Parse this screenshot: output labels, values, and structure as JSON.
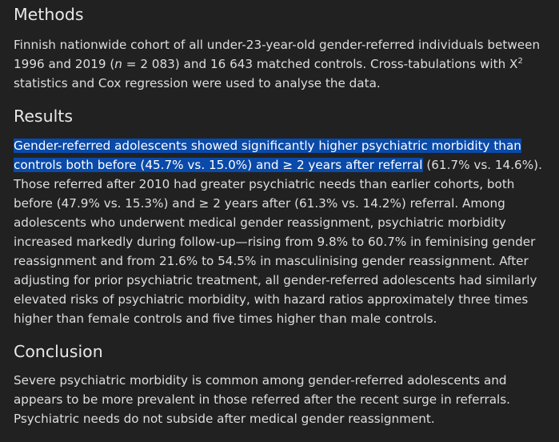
{
  "methods": {
    "title": "Methods",
    "line1": "Finnish nationwide cohort of all under-23-year-old gender-referred individuals between",
    "line2a": "1996 and 2019 (",
    "line2_n": "n",
    "line2b": " = 2 083) and 16 643 matched controls. Cross-tabulations with X",
    "line2_sup": "2",
    "line3": "statistics and Cox regression were used to analyse the data."
  },
  "results": {
    "title": "Results",
    "highlighted": "Gender-referred adolescents showed significantly higher psychiatric morbidity than controls both before (45.7% vs. 15.0%) and ≥ 2 years after referral",
    "rest": " (61.7% vs. 14.6%). Those referred after 2010 had greater psychiatric needs than earlier cohorts, both before (47.9% vs. 15.3%) and ≥ 2 years after (61.3% vs. 14.2%) referral. Among adolescents who underwent medical gender reassignment, psychiatric morbidity increased markedly during follow-up—rising from 9.8% to 60.7% in feminising gender reassignment and from 21.6% to 54.5% in masculinising gender reassignment. After adjusting for prior psychiatric treatment, all gender-referred adolescents had similarly elevated risks of psychiatric morbidity, with hazard ratios approximately three times higher than female controls and five times higher than male controls."
  },
  "conclusion": {
    "title": "Conclusion",
    "body": "Severe psychiatric morbidity is common among gender-referred adolescents and appears to be more prevalent in those referred after the recent surge in referrals. Psychiatric needs do not subside after medical gender reassignment."
  },
  "colors": {
    "background": "#212121",
    "text": "#dedede",
    "selection": "#0a4aa8"
  }
}
